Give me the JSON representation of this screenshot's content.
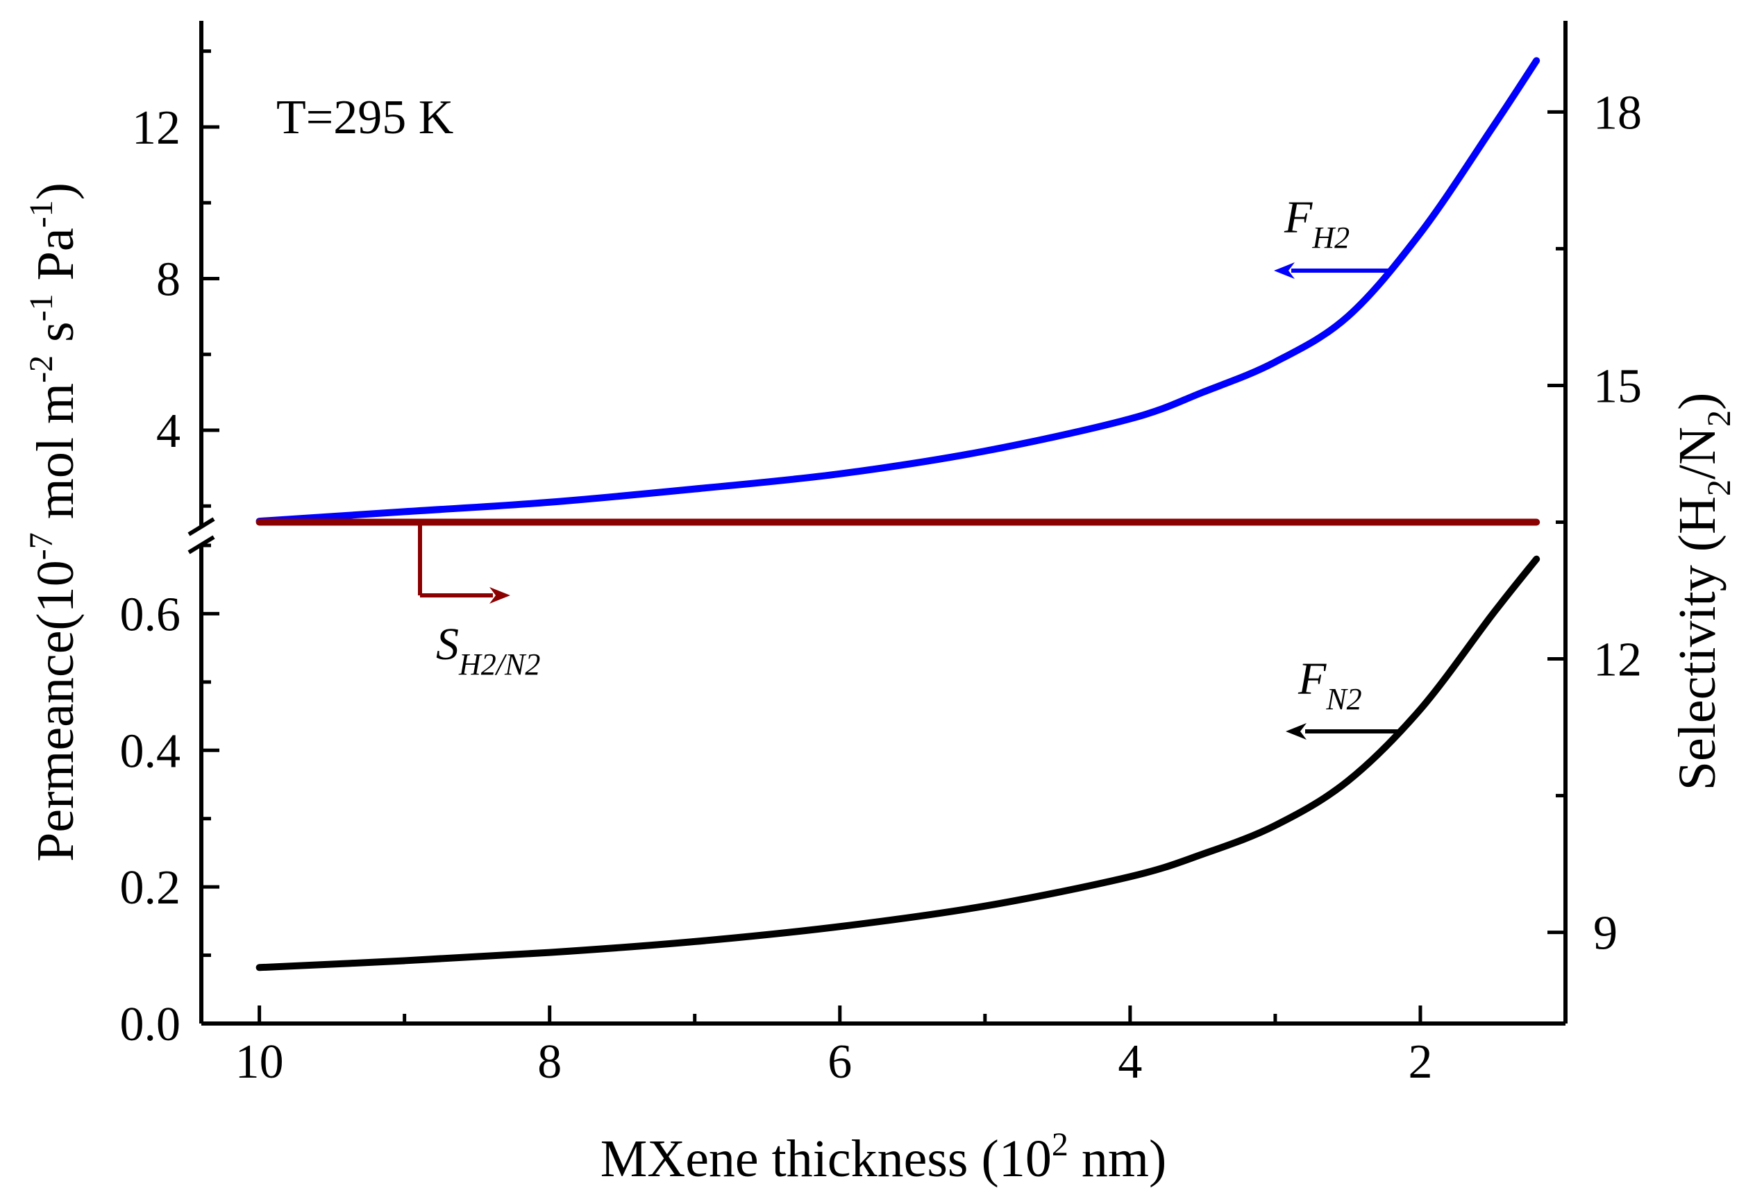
{
  "chart_data": {
    "type": "line",
    "x_label_prefix": "MXene thickness (10",
    "x_label_sup": "2",
    "x_label_suffix": " nm)",
    "x_reversed": true,
    "xlim": [
      10.4,
      1.0
    ],
    "x_ticks": [
      "10",
      "8",
      "6",
      "4",
      "2"
    ],
    "x_tick_values": [
      10,
      8,
      6,
      4,
      2
    ],
    "y_left": {
      "label_parts": [
        {
          "t": "Permeance(10",
          "sup": false
        },
        {
          "t": "-7",
          "sup": true
        },
        {
          "t": " mol m",
          "sup": false
        },
        {
          "t": "-2",
          "sup": true
        },
        {
          "t": " s",
          "sup": false
        },
        {
          "t": "-1",
          "sup": true
        },
        {
          "t": " Pa",
          "sup": false
        },
        {
          "t": "-1",
          "sup": true
        },
        {
          "t": ")",
          "sup": false
        }
      ],
      "broken": true,
      "lower_range": [
        0.0,
        0.7
      ],
      "lower_ticks": [
        "0.0",
        "0.2",
        "0.4",
        "0.6"
      ],
      "lower_tick_values": [
        0.0,
        0.2,
        0.4,
        0.6
      ],
      "upper_range": [
        1.4,
        14.8
      ],
      "upper_ticks": [
        "4",
        "8",
        "12"
      ],
      "upper_tick_values": [
        4,
        8,
        12
      ]
    },
    "y_right": {
      "label_prefix": "Selectivity (H",
      "label_sub1": "2",
      "label_mid": "/N",
      "label_sub2": "2",
      "label_suffix": ")",
      "range": [
        8.0,
        19.0
      ],
      "ticks": [
        "9",
        "12",
        "15",
        "18"
      ],
      "tick_values": [
        9,
        12,
        15,
        18
      ]
    },
    "annotation_temp": "T=295 K",
    "series": [
      {
        "name": "F_H2",
        "label_main": "F",
        "label_sub": "H2",
        "axis": "left-upper",
        "color": "#0000ff",
        "x": [
          10,
          9,
          8,
          7,
          6,
          5,
          4,
          3.5,
          3,
          2.5,
          2,
          1.5,
          1.2
        ],
        "y": [
          1.6,
          1.85,
          2.1,
          2.45,
          2.85,
          3.45,
          4.3,
          5.0,
          5.8,
          7.0,
          9.2,
          12.0,
          13.75
        ]
      },
      {
        "name": "F_N2",
        "label_main": "F",
        "label_sub": "N2",
        "axis": "left-lower",
        "color": "#000000",
        "x": [
          10,
          9,
          8,
          7,
          6,
          5,
          4,
          3.5,
          3,
          2.5,
          2,
          1.5,
          1.2
        ],
        "y": [
          0.082,
          0.092,
          0.104,
          0.12,
          0.142,
          0.172,
          0.215,
          0.248,
          0.29,
          0.355,
          0.46,
          0.6,
          0.68
        ]
      },
      {
        "name": "S_H2/N2",
        "label_main": "S",
        "label_sub": "H2/N2",
        "axis": "right",
        "color": "#8b0000",
        "x": [
          10,
          1.2
        ],
        "y": [
          13.5,
          13.5
        ]
      }
    ]
  }
}
